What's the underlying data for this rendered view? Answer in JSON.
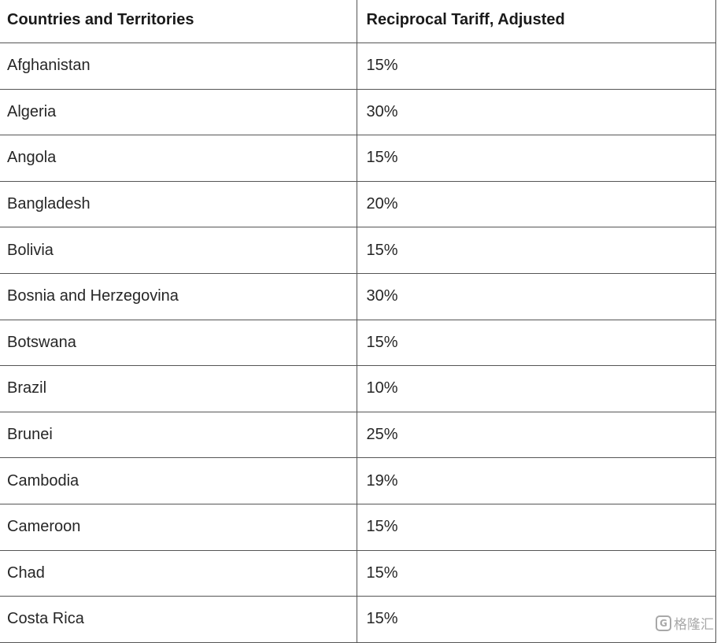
{
  "table": {
    "headers": [
      "Countries and Territories",
      "Reciprocal Tariff, Adjusted"
    ],
    "rows": [
      [
        "Afghanistan",
        "15%"
      ],
      [
        "Algeria",
        "30%"
      ],
      [
        "Angola",
        "15%"
      ],
      [
        "Bangladesh",
        "20%"
      ],
      [
        "Bolivia",
        "15%"
      ],
      [
        "Bosnia and Herzegovina",
        "30%"
      ],
      [
        "Botswana",
        "15%"
      ],
      [
        "Brazil",
        "10%"
      ],
      [
        "Brunei",
        "25%"
      ],
      [
        "Cambodia",
        "19%"
      ],
      [
        "Cameroon",
        "15%"
      ],
      [
        "Chad",
        "15%"
      ],
      [
        "Costa Rica",
        "15%"
      ]
    ]
  },
  "watermark": {
    "logo_letter": "G",
    "text": "格隆汇"
  }
}
